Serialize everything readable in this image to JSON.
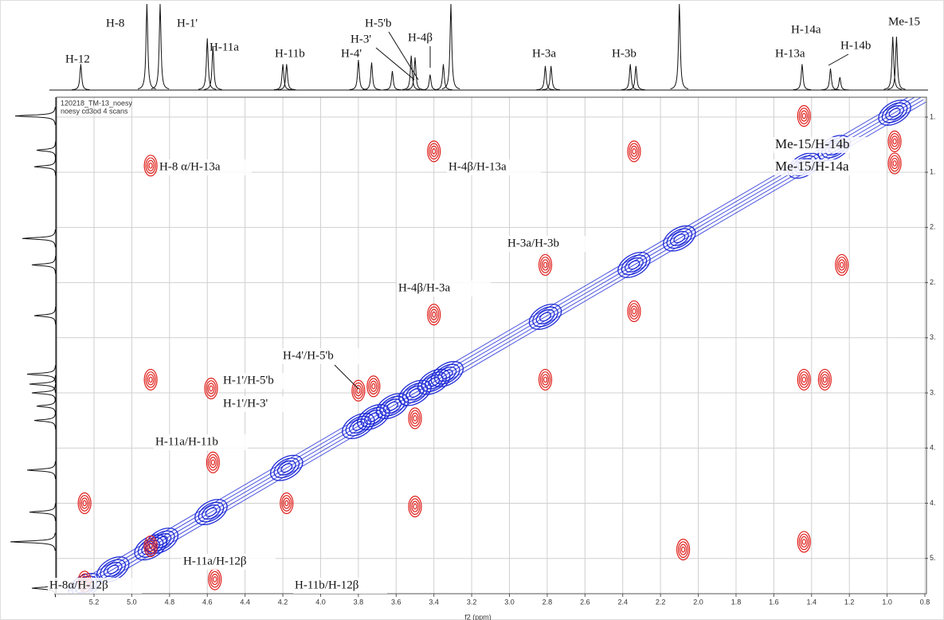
{
  "chart_data": {
    "type": "noesy",
    "header": [
      "120218_TM-13_noesy",
      "noesy cd3od 4 scans"
    ],
    "xlabel": "f2 (ppm)",
    "xlim": [
      5.4,
      0.8
    ],
    "ylim": [
      0.82,
      5.32
    ],
    "xticks": [
      5.2,
      {
        "value": 5.0,
        "label": "5.0"
      },
      4.8,
      4.6,
      4.4,
      4.2,
      {
        "value": 4.0,
        "label": "4.0"
      },
      3.8,
      3.6,
      3.4,
      3.2,
      {
        "value": 3.0,
        "label": "3.0"
      },
      2.8,
      2.6,
      2.4,
      2.2,
      {
        "value": 2.0,
        "label": "2.0"
      },
      1.8,
      1.6,
      1.4,
      1.2,
      {
        "value": 1.0,
        "label": "1.0"
      },
      0.8
    ],
    "yticks": [
      {
        "value": 1.0,
        "label": "1."
      },
      {
        "value": 1.5,
        "label": "1."
      },
      {
        "value": 2.0,
        "label": "2."
      },
      {
        "value": 2.5,
        "label": "2."
      },
      {
        "value": 3.0,
        "label": "3."
      },
      {
        "value": 3.5,
        "label": "3."
      },
      {
        "value": 4.0,
        "label": "4."
      },
      {
        "value": 4.5,
        "label": "4."
      },
      {
        "value": 5.0,
        "label": "5."
      }
    ],
    "grid": true,
    "top_spectrum": {
      "color": "#111111",
      "x": [
        5.27,
        4.92,
        4.85,
        4.6,
        4.57,
        4.2,
        4.18,
        3.8,
        3.73,
        3.62,
        3.52,
        3.5,
        3.42,
        3.35,
        3.31,
        2.81,
        2.78,
        2.36,
        2.33,
        2.1,
        1.45,
        1.3,
        1.25,
        0.97,
        0.95
      ],
      "values": [
        30,
        100,
        100,
        60,
        50,
        30,
        30,
        35,
        32,
        22,
        40,
        38,
        18,
        30,
        100,
        28,
        28,
        30,
        28,
        100,
        30,
        25,
        15,
        62,
        62
      ]
    },
    "left_spectrum": {
      "color": "#111111",
      "y": [
        0.99,
        1.3,
        1.45,
        2.1,
        2.34,
        2.8,
        3.33,
        3.42,
        3.5,
        3.62,
        3.75,
        4.2,
        4.58,
        4.85,
        5.27
      ],
      "values": [
        85,
        40,
        45,
        70,
        50,
        45,
        60,
        55,
        50,
        40,
        45,
        60,
        55,
        95,
        50
      ]
    },
    "top_labels": [
      "H-12",
      "H-8",
      "H-1'",
      "H-11a",
      "H-11b",
      "H-4'",
      "H-3'",
      "H-5'b",
      "H-4β",
      "H-3a",
      "H-3b",
      "H-13a",
      "H-14a",
      "H-14b",
      "Me-15"
    ],
    "diagonal_peaks": {
      "color": "#1f2bd6",
      "x": [
        5.25,
        5.1,
        4.9,
        4.84,
        4.58,
        4.18,
        3.8,
        3.72,
        3.62,
        3.5,
        3.4,
        3.33,
        2.81,
        2.34,
        2.1,
        1.44,
        1.28,
        0.96
      ]
    },
    "cross_peaks": {
      "color": "#e0201b",
      "x": [
        1.44,
        0.96,
        0.96,
        4.9,
        3.4,
        2.34,
        2.81,
        2.34,
        3.4,
        1.24,
        4.9,
        4.58,
        3.8,
        3.72,
        3.5,
        2.81,
        1.44,
        1.33,
        4.57,
        4.18,
        3.5,
        5.25,
        1.44,
        4.9,
        4.56,
        5.25,
        2.08
      ],
      "y": [
        0.99,
        1.22,
        1.42,
        1.44,
        1.31,
        1.31,
        2.34,
        2.76,
        2.79,
        2.34,
        3.38,
        3.46,
        3.48,
        3.44,
        3.73,
        3.38,
        3.38,
        3.38,
        4.13,
        4.5,
        4.53,
        4.5,
        4.85,
        4.89,
        5.19,
        5.21,
        4.92
      ]
    },
    "annotations": [
      "H-8 α/H-13a",
      "H-4β/H-13a",
      "Me-15/H-14b",
      "Me-15/H-14a",
      "H-3a/H-3b",
      "H-4β/H-3a",
      "H-4'/H-5'b",
      "H-1'/H-5'b",
      "H-1'/H-3'",
      "H-11a/H-11b",
      "H-11a/H-12β",
      "H-8α/H-12β",
      "H-11b/H-12β"
    ]
  }
}
